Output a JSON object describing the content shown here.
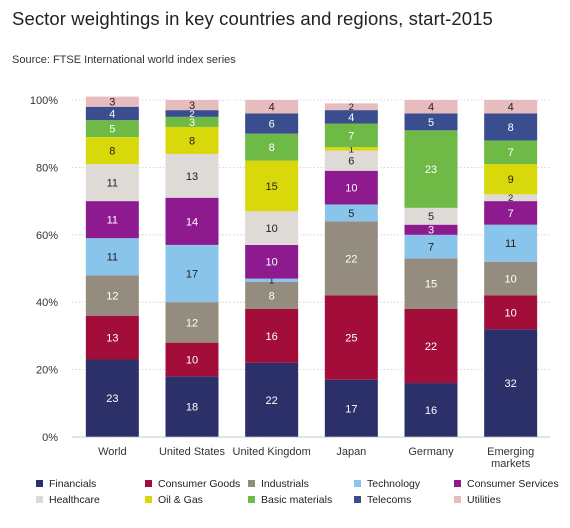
{
  "title": "Sector weightings in key countries and regions, start-2015",
  "source": "Source: FTSE International world index series",
  "chart_data": {
    "type": "bar",
    "stacked": true,
    "categories": [
      "World",
      "United States",
      "United Kingdom",
      "Japan",
      "Germany",
      "Emerging markets"
    ],
    "ylim": [
      0,
      100
    ],
    "yticks": [
      "0%",
      "20%",
      "40%",
      "60%",
      "80%",
      "100%"
    ],
    "series": [
      {
        "name": "Financials",
        "color": "#2b3068",
        "label_color": "#ffffff",
        "values": [
          23,
          18,
          22,
          17,
          16,
          32
        ]
      },
      {
        "name": "Consumer Goods",
        "color": "#a30d3a",
        "label_color": "#ffffff",
        "values": [
          13,
          10,
          16,
          25,
          22,
          10
        ]
      },
      {
        "name": "Industrials",
        "color": "#958c80",
        "label_color": "#ffffff",
        "values": [
          12,
          12,
          8,
          22,
          15,
          10
        ]
      },
      {
        "name": "Technology",
        "color": "#89c4ea",
        "label_color": "#222222",
        "values": [
          11,
          17,
          1,
          5,
          7,
          11
        ]
      },
      {
        "name": "Consumer Services",
        "color": "#8d1a8f",
        "label_color": "#ffffff",
        "values": [
          11,
          14,
          10,
          10,
          3,
          7
        ]
      },
      {
        "name": "Healthcare",
        "color": "#dedad5",
        "label_color": "#222222",
        "values": [
          11,
          13,
          10,
          6,
          5,
          2
        ]
      },
      {
        "name": "Oil & Gas",
        "color": "#d9d80a",
        "label_color": "#222222",
        "values": [
          8,
          8,
          15,
          1,
          0,
          9
        ]
      },
      {
        "name": "Basic materials",
        "color": "#6fb946",
        "label_color": "#ffffff",
        "values": [
          5,
          3,
          8,
          7,
          23,
          7
        ]
      },
      {
        "name": "Telecoms",
        "color": "#3a4d8e",
        "label_color": "#ffffff",
        "values": [
          4,
          2,
          6,
          4,
          5,
          8
        ]
      },
      {
        "name": "Utilities",
        "color": "#e6bcbe",
        "label_color": "#222222",
        "values": [
          3,
          3,
          4,
          2,
          4,
          4
        ]
      }
    ]
  }
}
